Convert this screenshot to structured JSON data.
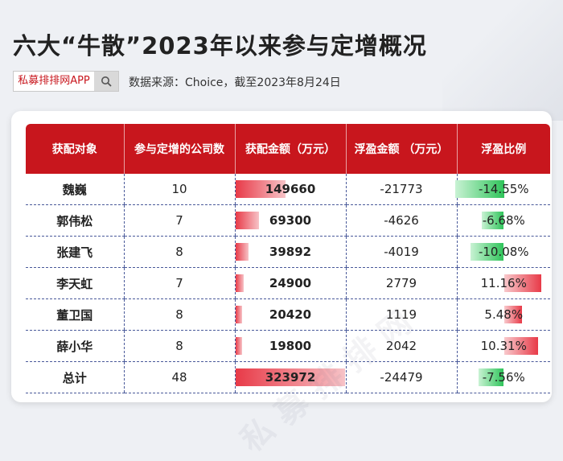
{
  "title": "六大“牛散”2023年以来参与定增概况",
  "brand": "私募排排网APP",
  "source": "数据来源：Choice，截至2023年8月24日",
  "watermark": "私募排排网",
  "icons": {
    "search": "search-icon"
  },
  "colors": {
    "header": "#c8161d",
    "bar_red": "#e83a48",
    "bar_green": "#2fc45a"
  },
  "chart_data": {
    "type": "table",
    "columns": [
      "获配对象",
      "参与定增的公司数",
      "获配金额（万元）",
      "浮盈金额 （万元）",
      "浮盈比例"
    ],
    "rows": [
      {
        "name": "魏巍",
        "companies": "10",
        "amount": "149660",
        "amount_value": 149660,
        "profit": "-21773",
        "ratio": "-14.55%",
        "ratio_value": -14.55
      },
      {
        "name": "郭伟松",
        "companies": "7",
        "amount": "69300",
        "amount_value": 69300,
        "profit": "-4626",
        "ratio": "-6.68%",
        "ratio_value": -6.68
      },
      {
        "name": "张建飞",
        "companies": "8",
        "amount": "39892",
        "amount_value": 39892,
        "profit": "-4019",
        "ratio": "-10.08%",
        "ratio_value": -10.08
      },
      {
        "name": "李天虹",
        "companies": "7",
        "amount": "24900",
        "amount_value": 24900,
        "profit": "2779",
        "ratio": "11.16%",
        "ratio_value": 11.16
      },
      {
        "name": "董卫国",
        "companies": "8",
        "amount": "20420",
        "amount_value": 20420,
        "profit": "1119",
        "ratio": "5.48%",
        "ratio_value": 5.48
      },
      {
        "name": "薛小华",
        "companies": "8",
        "amount": "19800",
        "amount_value": 19800,
        "profit": "2042",
        "ratio": "10.31%",
        "ratio_value": 10.31
      },
      {
        "name": "总计",
        "companies": "48",
        "amount": "323972",
        "amount_value": 323972,
        "profit": "-24479",
        "ratio": "-7.56%",
        "ratio_value": -7.56
      }
    ]
  }
}
